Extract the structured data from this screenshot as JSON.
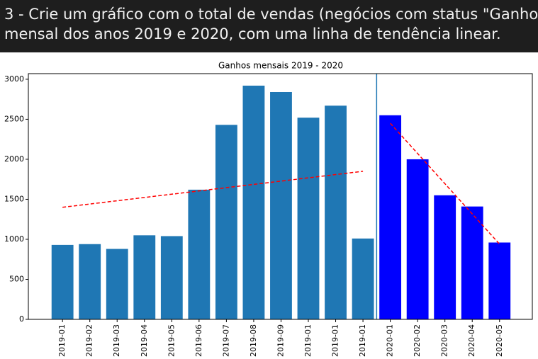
{
  "header": {
    "text": [
      "3 - Crie um gráfico com o total de vendas (negócios com status \"Ganho\")",
      "mensal dos anos 2019 e 2020, com uma linha de tendência linear."
    ]
  },
  "chart_data": {
    "type": "bar",
    "title": "Ganhos mensais 2019 - 2020",
    "categories": [
      "2019-01",
      "2019-02",
      "2019-03",
      "2019-04",
      "2019-05",
      "2019-06",
      "2019-07",
      "2019-08",
      "2019-09",
      "2019-01",
      "2019-01",
      "2019-01",
      "2020-01",
      "2020-02",
      "2020-03",
      "2020-04",
      "2020-05"
    ],
    "values": [
      930,
      940,
      880,
      1050,
      1040,
      1620,
      2430,
      2920,
      2840,
      2520,
      2670,
      1010,
      2550,
      2000,
      1550,
      1410,
      960
    ],
    "colors": [
      "#1f77b4",
      "#1f77b4",
      "#1f77b4",
      "#1f77b4",
      "#1f77b4",
      "#1f77b4",
      "#1f77b4",
      "#1f77b4",
      "#1f77b4",
      "#1f77b4",
      "#1f77b4",
      "#1f77b4",
      "#0000ff",
      "#0000ff",
      "#0000ff",
      "#0000ff",
      "#0000ff"
    ],
    "trend_lines": [
      {
        "color": "#ff0000",
        "x": [
          0,
          11
        ],
        "values": [
          1400,
          1850
        ]
      },
      {
        "color": "#ff0000",
        "x": [
          12,
          16
        ],
        "values": [
          2450,
          940
        ]
      }
    ],
    "vline": {
      "x": 11.5,
      "color": "#1f77b4"
    },
    "xlim": [
      -1.25,
      17.2
    ],
    "ylim": [
      0,
      3070
    ],
    "yticks": [
      0,
      500,
      1000,
      1500,
      2000,
      2500,
      3000
    ]
  }
}
